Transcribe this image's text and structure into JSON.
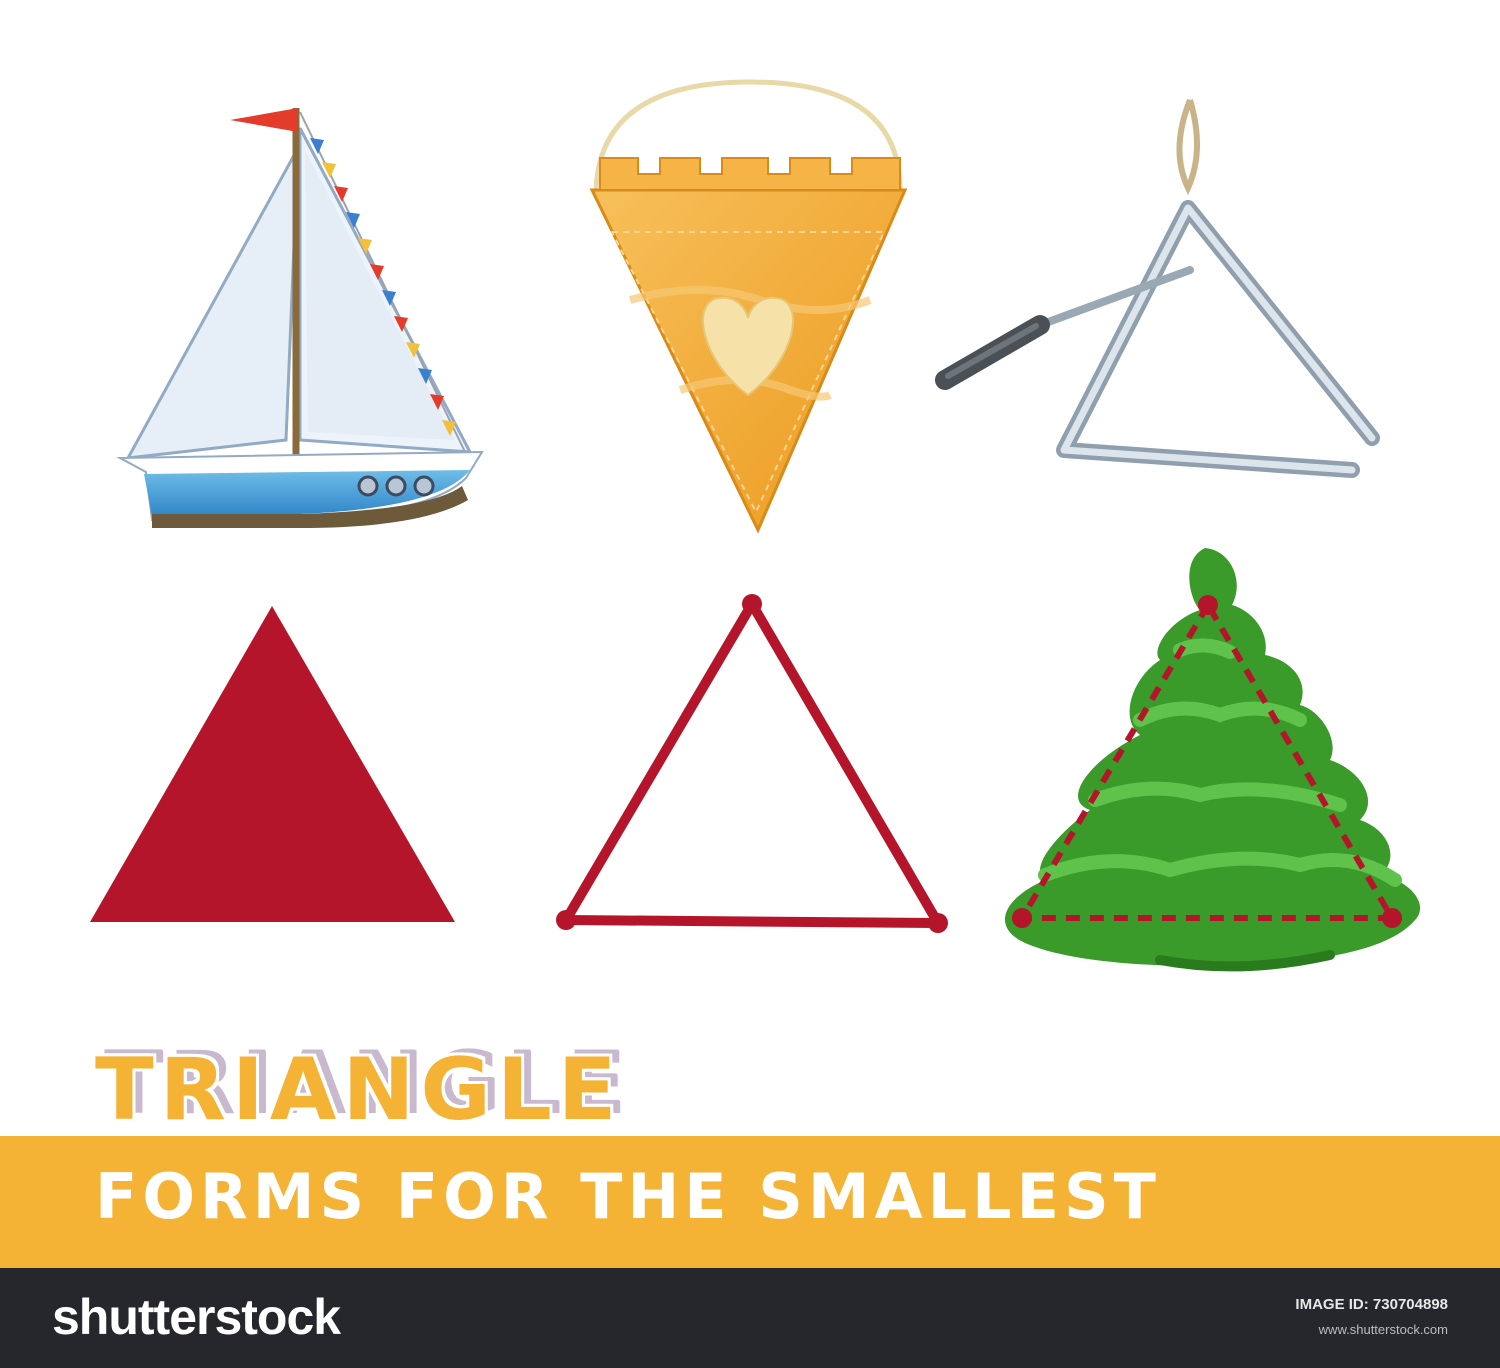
{
  "title": "TRIANGLE",
  "subtitle": "FORMS FOR THE SMALLEST",
  "footer": {
    "brand": "shutterstock",
    "image_id_label": "IMAGE ID: 730704898",
    "site": "www.shutterstock.com"
  },
  "illustrations": [
    {
      "name": "sailboat",
      "icon": "sailboat-icon"
    },
    {
      "name": "pennant",
      "icon": "pennant-icon"
    },
    {
      "name": "musical-triangle",
      "icon": "musical-triangle-icon"
    },
    {
      "name": "filled-triangle",
      "icon": "filled-triangle-icon"
    },
    {
      "name": "outline-triangle",
      "icon": "outline-triangle-icon"
    },
    {
      "name": "fir-tree",
      "icon": "fir-tree-icon"
    }
  ],
  "colors": {
    "accent": "#f5b335",
    "triangle_red": "#b5152a",
    "footer": "#25272c",
    "tree_green": "#3a9a2a"
  }
}
